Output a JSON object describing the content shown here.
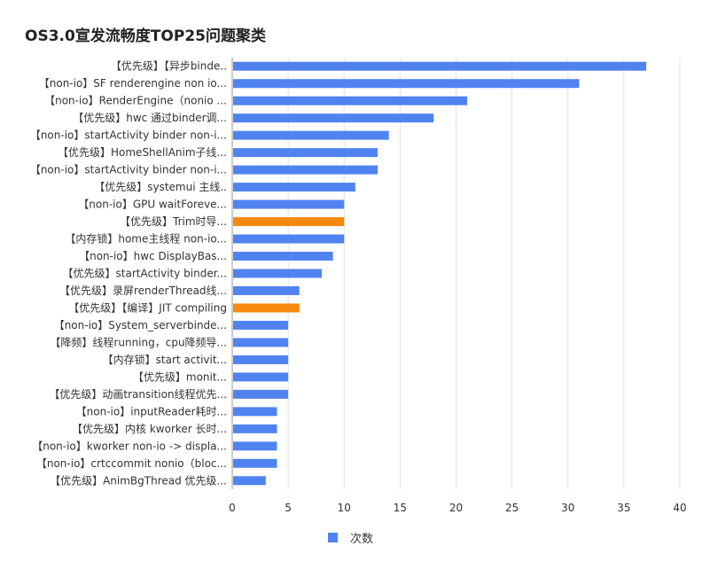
{
  "chart_data": {
    "type": "bar",
    "orientation": "horizontal",
    "title": "OS3.0宣发流畅度TOP25问题聚类",
    "categories": [
      "【优先级】【异步binde..",
      "【non-io】SF renderengine non io...",
      "【non-io】RenderEngine（nonio ...",
      "【优先级】hwc 通过binder调...",
      "【non-io】startActivity binder non-i...",
      "【优先级】HomeShellAnim子线...",
      "【non-io】startActivity binder non-i...",
      "【优先级】systemui 主线..",
      "【non-io】GPU waitForeve...",
      "【优先级】Trim时导...",
      "【内存锁】home主线程 non-io...",
      "【non-io】hwc DisplayBas...",
      "【优先级】startActivity binder...",
      "【优先级】录屏renderThread线...",
      "【优先级】【编译】JIT compiling",
      "【non-io】System_serverbinde...",
      "【降频】线程running，cpu降频导...",
      "【内存锁】start activit...",
      "【优先级】monit...",
      "【优先级】动画transition线程优先...",
      "【non-io】inputReader耗时...",
      "【优先级】内核 kworker 长时...",
      "【non-io】kworker non-io -> displa...",
      "【non-io】crtccommit nonio（bloc...",
      "【优先级】AnimBgThread 优先级..."
    ],
    "series": [
      {
        "name": "次数",
        "values": [
          37,
          31,
          21,
          18,
          14,
          13,
          13,
          11,
          10,
          10,
          10,
          9,
          8,
          6,
          6,
          5,
          5,
          5,
          5,
          5,
          4,
          4,
          4,
          4,
          3
        ]
      }
    ],
    "highlighted": [
      9,
      14
    ],
    "xlim": [
      0,
      40
    ],
    "xticks": [
      "0",
      "5",
      "10",
      "15",
      "20",
      "25",
      "30",
      "35",
      "40"
    ],
    "grid": true,
    "legend": "bottom",
    "colors": {
      "bar": "#5183f0",
      "highlight": "#f7890f",
      "grid": "#e0e0e0"
    }
  }
}
